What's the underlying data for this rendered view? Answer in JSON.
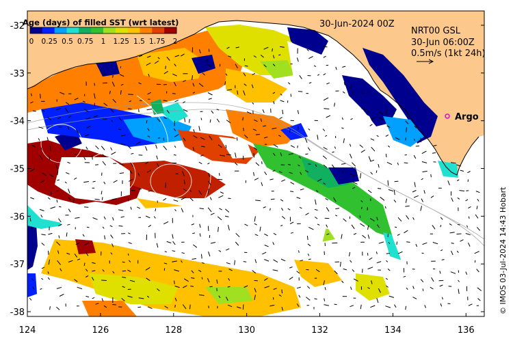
{
  "map": {
    "timestamp": "30-Jun-2024 00Z",
    "product": "NRT00 GSL",
    "current_time": "30-Jun 06:00Z",
    "vector_scale": "0.5m/s (1kt 24h)",
    "argo_label": "Argo",
    "credit": "© IMOS 03-Jul-2024 14:43 Hobart",
    "colorbar": {
      "title": "Age (days) of filled SST (wrt latest)",
      "ticks": [
        "0",
        "0.25",
        "0.5",
        "0.75",
        "1",
        "1.25",
        "1.5",
        "1.75",
        "2"
      ],
      "colors": [
        "#00008f",
        "#0020ff",
        "#00a0ff",
        "#20e0d0",
        "#10b060",
        "#30c030",
        "#a0e020",
        "#e0e000",
        "#ffc000",
        "#ff8000",
        "#e04000",
        "#a00000"
      ]
    },
    "x_ticks": [
      "124",
      "126",
      "128",
      "130",
      "132",
      "134",
      "136"
    ],
    "y_ticks": [
      "-32",
      "-33",
      "-34",
      "-35",
      "-36",
      "-37",
      "-38"
    ],
    "lon_range": [
      124,
      136.5
    ],
    "lat_range": [
      -38.1,
      -31.7
    ],
    "colors": {
      "land": "#fcc88c",
      "no_data": "#ffffff",
      "argo_marker": "#e000e0"
    }
  }
}
